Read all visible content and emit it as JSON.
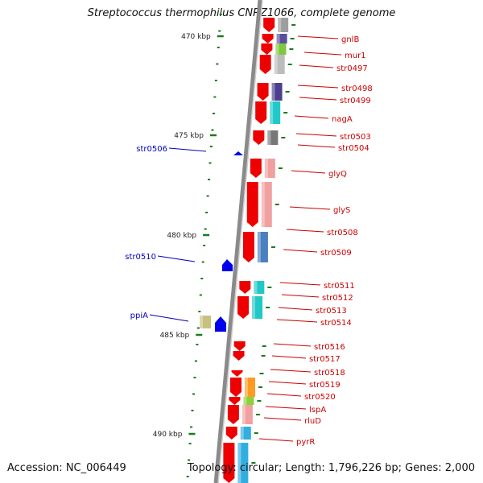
{
  "title": "Streptococcus thermophilus CNRZ1066, complete genome",
  "footer": {
    "accession": "Accession: NC_006449",
    "summary": "Topology: circular; Length: 1,796,226 bp; Genes: 2,000"
  },
  "tick_labels": [
    "470 kbp",
    "475 kbp",
    "480 kbp",
    "485 kbp",
    "490 kbp"
  ],
  "colors": {
    "backbone": "#8a8a8a",
    "tick": "#1a7a1a",
    "forward_gene_label": "#cc0000",
    "reverse_gene_label": "#0000bb",
    "forward_gene": "#ee0000",
    "reverse_gene": "#0000ee"
  },
  "reverse_genes": [
    "str0506",
    "str0510",
    "ppiA"
  ],
  "forward_genes": [
    "gnlB",
    "mur1",
    "str0497",
    "str0498",
    "str0499",
    "nagA",
    "str0503",
    "str0504",
    "glyQ",
    "glyS",
    "str0508",
    "str0509",
    "str0511",
    "str0512",
    "str0513",
    "str0514",
    "str0516",
    "str0517",
    "str0518",
    "str0519",
    "str0520",
    "lspA",
    "rluD",
    "pyrR"
  ]
}
